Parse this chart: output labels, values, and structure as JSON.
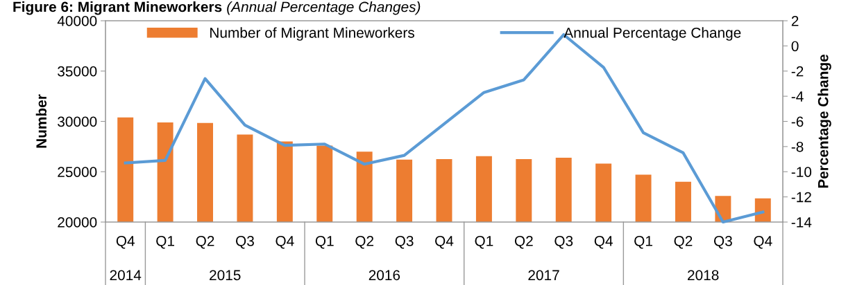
{
  "chart_data": {
    "type": "bar",
    "title": "Figure 6: Migrant Mineworkers",
    "subtitle": "(Annual Percentage Changes)",
    "ylabel": "Number",
    "y2label": "Percentage Change",
    "categories": [
      "Q4",
      "Q1",
      "Q2",
      "Q3",
      "Q4",
      "Q1",
      "Q2",
      "Q3",
      "Q4",
      "Q1",
      "Q2",
      "Q3",
      "Q4",
      "Q1",
      "Q2",
      "Q3",
      "Q4"
    ],
    "annotations": [
      "2014",
      "2015",
      "2016",
      "2017",
      "2018"
    ],
    "series": [
      {
        "name": "Number of Migrant Mineworkers",
        "color": "#ed7d31",
        "values": [
          30400,
          29900,
          29850,
          28700,
          28000,
          27600,
          27000,
          26200,
          26250,
          26550,
          26250,
          26400,
          25800,
          24700,
          24000,
          22600,
          22350
        ]
      },
      {
        "name": "Annual Percentage Change",
        "type": "line",
        "axis": "y2",
        "color": "#5b9bd5",
        "values": [
          -9.3,
          -9.1,
          -2.6,
          -6.3,
          -7.9,
          -7.8,
          -9.4,
          -8.7,
          -6.2,
          -3.7,
          -2.7,
          0.9,
          -1.7,
          -6.9,
          -8.5,
          -14,
          -13.2
        ]
      }
    ],
    "ylim": [
      20000,
      40000
    ],
    "yticks": [
      20000,
      25000,
      30000,
      35000,
      40000
    ],
    "y2lim": [
      -14,
      2
    ],
    "y2ticks": [
      -14,
      -12,
      -10,
      -8,
      -6,
      -4,
      -2,
      0,
      2
    ],
    "legend": "top",
    "grid": false
  }
}
